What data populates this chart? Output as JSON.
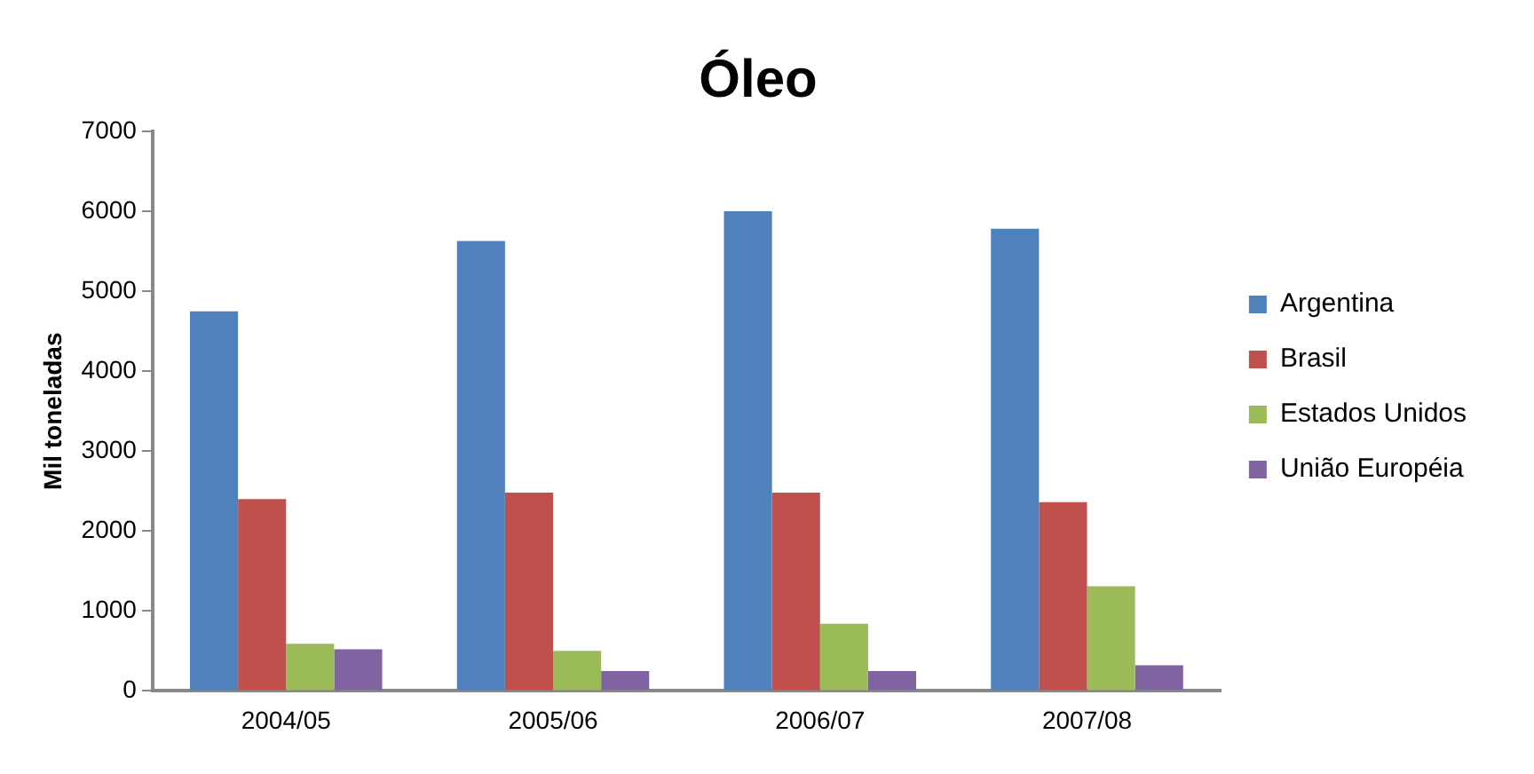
{
  "chart_data": {
    "type": "bar",
    "title": "Óleo",
    "ylabel": "Mil toneladas",
    "categories": [
      "2004/05",
      "2005/06",
      "2006/07",
      "2007/08"
    ],
    "series": [
      {
        "name": "Argentina",
        "color": "#4f81bd",
        "values": [
          4750,
          5630,
          6000,
          5780
        ]
      },
      {
        "name": "Brasil",
        "color": "#c0504d",
        "values": [
          2400,
          2480,
          2480,
          2360
        ]
      },
      {
        "name": "Estados Unidos",
        "color": "#9bbb59",
        "values": [
          590,
          500,
          840,
          1310
        ]
      },
      {
        "name": "União Européia",
        "color": "#8064a2",
        "values": [
          520,
          250,
          250,
          320
        ]
      }
    ],
    "ylim": [
      0,
      7000
    ],
    "yticks": [
      0,
      1000,
      2000,
      3000,
      4000,
      5000,
      6000,
      7000
    ],
    "grid": false,
    "legend": "right"
  }
}
